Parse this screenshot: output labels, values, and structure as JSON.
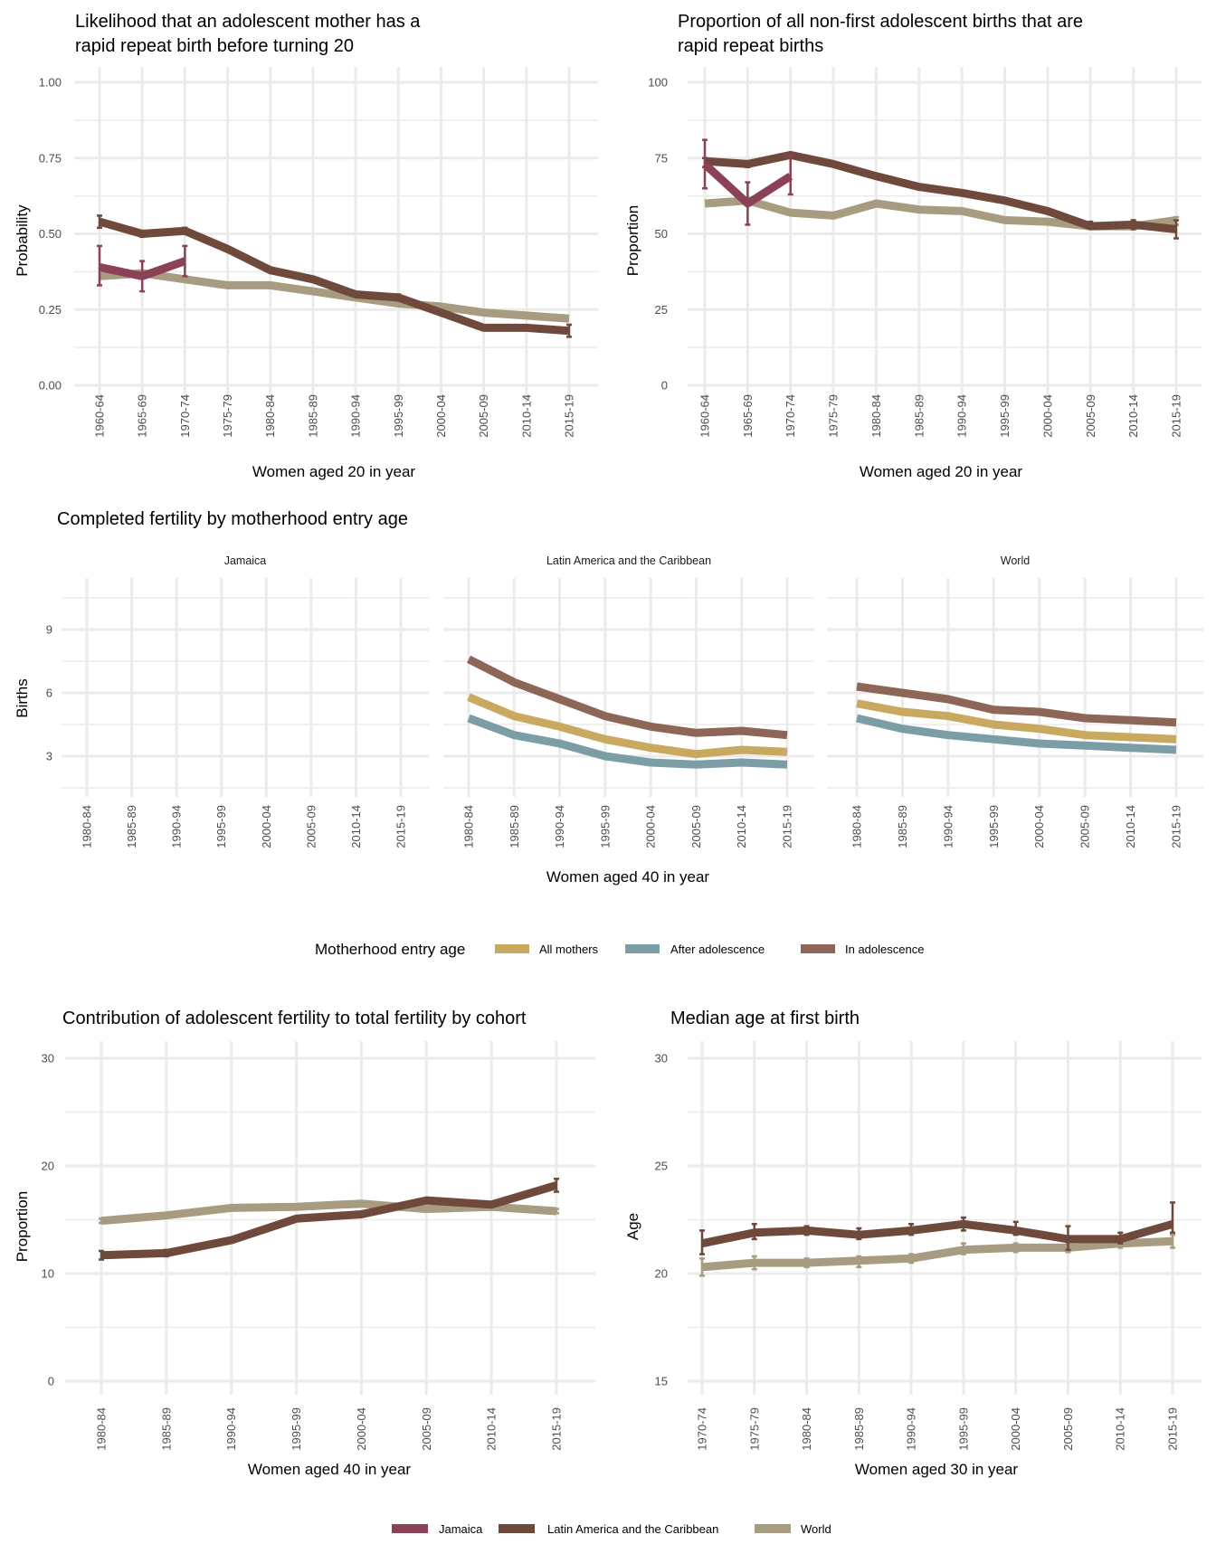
{
  "colors": {
    "Jamaica": "#8b4257",
    "Latin America and the Caribbean": "#6f4a3c",
    "World": "#a89c80",
    "All mothers": "#c9a95f",
    "After adolescence": "#7b9ea6",
    "In adolescence": "#8d6657",
    "grid": "#ebebeb"
  },
  "legends": {
    "motherhood": {
      "title": "Motherhood entry age",
      "items": [
        "All mothers",
        "After adolescence",
        "In adolescence"
      ]
    },
    "region": {
      "items": [
        "Jamaica",
        "Latin America and the Caribbean",
        "World"
      ]
    }
  },
  "chart_data": [
    {
      "type": "line",
      "title_lines": [
        "Likelihood that an adolescent mother has a",
        "rapid repeat birth before turning 20"
      ],
      "xlabel": "Women aged 20 in year",
      "ylabel": "Probability",
      "ylim": [
        -0.05,
        1.05
      ],
      "yticks": [
        0,
        0.25,
        0.5,
        0.75,
        1.0
      ],
      "ytick_labels": [
        "0.00",
        "0.25",
        "0.50",
        "0.75",
        "1.00"
      ],
      "categories": [
        "1960-64",
        "1965-69",
        "1970-74",
        "1975-79",
        "1980-84",
        "1985-89",
        "1990-94",
        "1995-99",
        "2000-04",
        "2005-09",
        "2010-14",
        "2015-19"
      ],
      "series": [
        {
          "name": "World",
          "values": [
            0.36,
            0.37,
            0.35,
            0.33,
            0.33,
            0.31,
            0.29,
            0.27,
            0.26,
            0.24,
            0.23,
            0.22
          ]
        },
        {
          "name": "Latin America and the Caribbean",
          "values": [
            0.54,
            0.5,
            0.51,
            0.45,
            0.38,
            0.35,
            0.3,
            0.29,
            0.24,
            0.19,
            0.19,
            0.18
          ],
          "ci": [
            [
              0.52,
              0.56
            ],
            [
              0.49,
              0.51
            ],
            [
              0.5,
              0.52
            ],
            null,
            null,
            null,
            null,
            [
              0.28,
              0.3
            ],
            null,
            null,
            null,
            [
              0.16,
              0.2
            ]
          ]
        },
        {
          "name": "Jamaica",
          "values": [
            0.39,
            0.36,
            0.41,
            null,
            null,
            null,
            null,
            null,
            null,
            null,
            null,
            null
          ],
          "ci": [
            [
              0.33,
              0.46
            ],
            [
              0.31,
              0.41
            ],
            [
              0.36,
              0.46
            ],
            null,
            null,
            null,
            null,
            null,
            null,
            null,
            null,
            null
          ]
        }
      ]
    },
    {
      "type": "line",
      "title_lines": [
        "Proportion of all non-first adolescent births that are",
        "rapid repeat births"
      ],
      "xlabel": "Women aged 20 in year",
      "ylabel": "Proportion",
      "ylim": [
        -5,
        105
      ],
      "yticks": [
        0,
        25,
        50,
        75,
        100
      ],
      "ytick_labels": [
        "0",
        "25",
        "50",
        "75",
        "100"
      ],
      "categories": [
        "1960-64",
        "1965-69",
        "1970-74",
        "1975-79",
        "1980-84",
        "1985-89",
        "1990-94",
        "1995-99",
        "2000-04",
        "2005-09",
        "2010-14",
        "2015-19"
      ],
      "series": [
        {
          "name": "World",
          "values": [
            60,
            61,
            57,
            56,
            60,
            58,
            57.5,
            54.5,
            54,
            52.5,
            52.5,
            54.5
          ],
          "ci": [
            null,
            null,
            null,
            null,
            null,
            null,
            null,
            null,
            null,
            null,
            null,
            [
              53,
              55.5
            ]
          ]
        },
        {
          "name": "Latin America and the Caribbean",
          "values": [
            74,
            73,
            76,
            73,
            69,
            65.5,
            63.5,
            61,
            57.5,
            52.5,
            53,
            51.5
          ],
          "ci": [
            [
              72,
              75
            ],
            [
              72,
              74
            ],
            null,
            null,
            null,
            null,
            null,
            null,
            null,
            [
              52,
              54
            ],
            [
              51.5,
              54.5
            ],
            [
              48.5,
              54.5
            ]
          ]
        },
        {
          "name": "Jamaica",
          "values": [
            73,
            60,
            69,
            null,
            null,
            null,
            null,
            null,
            null,
            null,
            null,
            null
          ],
          "ci": [
            [
              65,
              81
            ],
            [
              53,
              67
            ],
            [
              63,
              76
            ],
            null,
            null,
            null,
            null,
            null,
            null,
            null,
            null,
            null
          ]
        }
      ]
    },
    {
      "type": "line",
      "title": "Completed fertility by motherhood entry age",
      "xlabel": "Women aged 40 in year",
      "ylabel": "Births",
      "ylim": [
        1,
        11
      ],
      "yticks": [
        3,
        6,
        9
      ],
      "ytick_labels": [
        "3",
        "6",
        "9"
      ],
      "categories": [
        "1980-84",
        "1985-89",
        "1990-94",
        "1995-99",
        "2000-04",
        "2005-09",
        "2010-14",
        "2015-19"
      ],
      "panels": [
        {
          "title": "Jamaica",
          "series": []
        },
        {
          "title": "Latin America and the Caribbean",
          "series": [
            {
              "name": "After adolescence",
              "values": [
                4.8,
                4.0,
                3.6,
                3.0,
                2.7,
                2.6,
                2.7,
                2.6
              ]
            },
            {
              "name": "All mothers",
              "values": [
                5.8,
                4.9,
                4.4,
                3.8,
                3.4,
                3.1,
                3.3,
                3.2
              ]
            },
            {
              "name": "In adolescence",
              "values": [
                7.6,
                6.5,
                5.7,
                4.9,
                4.4,
                4.1,
                4.2,
                4.0
              ]
            }
          ]
        },
        {
          "title": "World",
          "series": [
            {
              "name": "After adolescence",
              "values": [
                4.8,
                4.3,
                4.0,
                3.8,
                3.6,
                3.5,
                3.4,
                3.3
              ]
            },
            {
              "name": "All mothers",
              "values": [
                5.5,
                5.1,
                4.9,
                4.5,
                4.3,
                4.0,
                3.9,
                3.8
              ]
            },
            {
              "name": "In adolescence",
              "values": [
                6.3,
                6.0,
                5.7,
                5.2,
                5.1,
                4.8,
                4.7,
                4.6
              ]
            }
          ]
        }
      ]
    },
    {
      "type": "line",
      "title_lines": [
        "Contribution of adolescent fertility to total fertility by cohort"
      ],
      "xlabel": "Women aged 40 in year",
      "ylabel": "Proportion",
      "ylim": [
        -1.5,
        31.5
      ],
      "yticks": [
        0,
        10,
        20,
        30
      ],
      "ytick_labels": [
        "0",
        "10",
        "20",
        "30"
      ],
      "categories": [
        "1980-84",
        "1985-89",
        "1990-94",
        "1995-99",
        "2000-04",
        "2005-09",
        "2010-14",
        "2015-19"
      ],
      "series": [
        {
          "name": "World",
          "values": [
            14.9,
            15.4,
            16.1,
            16.2,
            16.5,
            16.0,
            16.2,
            15.8
          ],
          "ci": [
            [
              14.7,
              15.1
            ],
            null,
            null,
            null,
            null,
            null,
            null,
            [
              15.6,
              16.0
            ]
          ]
        },
        {
          "name": "Latin America and the Caribbean",
          "values": [
            11.7,
            11.9,
            13.1,
            15.1,
            15.5,
            16.8,
            16.4,
            18.2
          ],
          "ci": [
            [
              11.3,
              12.1
            ],
            [
              11.6,
              12.2
            ],
            null,
            null,
            null,
            null,
            [
              16.2,
              16.6
            ],
            [
              17.6,
              18.8
            ]
          ]
        }
      ]
    },
    {
      "type": "line",
      "title_lines": [
        "Median age at first birth"
      ],
      "xlabel": "Women aged 30 in year",
      "ylabel": "Age",
      "ylim": [
        14.25,
        30.75
      ],
      "yticks": [
        15,
        20,
        25,
        30
      ],
      "ytick_labels": [
        "15",
        "20",
        "25",
        "30"
      ],
      "categories": [
        "1970-74",
        "1975-79",
        "1980-84",
        "1985-89",
        "1990-94",
        "1995-99",
        "2000-04",
        "2005-09",
        "2010-14",
        "2015-19"
      ],
      "series": [
        {
          "name": "World",
          "values": [
            20.3,
            20.5,
            20.5,
            20.6,
            20.7,
            21.1,
            21.2,
            21.2,
            21.4,
            21.5
          ],
          "ci": [
            [
              19.9,
              20.7
            ],
            [
              20.2,
              20.8
            ],
            [
              20.3,
              20.7
            ],
            [
              20.3,
              20.8
            ],
            [
              20.5,
              20.9
            ],
            [
              20.9,
              21.4
            ],
            [
              21.0,
              21.4
            ],
            [
              21.0,
              21.4
            ],
            [
              21.2,
              21.6
            ],
            [
              21.2,
              21.8
            ]
          ]
        },
        {
          "name": "Latin America and the Caribbean",
          "values": [
            21.4,
            21.9,
            22.0,
            21.8,
            22.0,
            22.3,
            22.0,
            21.6,
            21.6,
            22.3
          ],
          "ci": [
            [
              20.9,
              22.0
            ],
            [
              21.6,
              22.3
            ],
            [
              21.8,
              22.2
            ],
            [
              21.6,
              22.1
            ],
            [
              21.8,
              22.3
            ],
            [
              22.0,
              22.6
            ],
            [
              21.8,
              22.4
            ],
            [
              21.1,
              22.2
            ],
            [
              21.4,
              21.9
            ],
            [
              21.9,
              23.3
            ]
          ]
        }
      ]
    }
  ]
}
